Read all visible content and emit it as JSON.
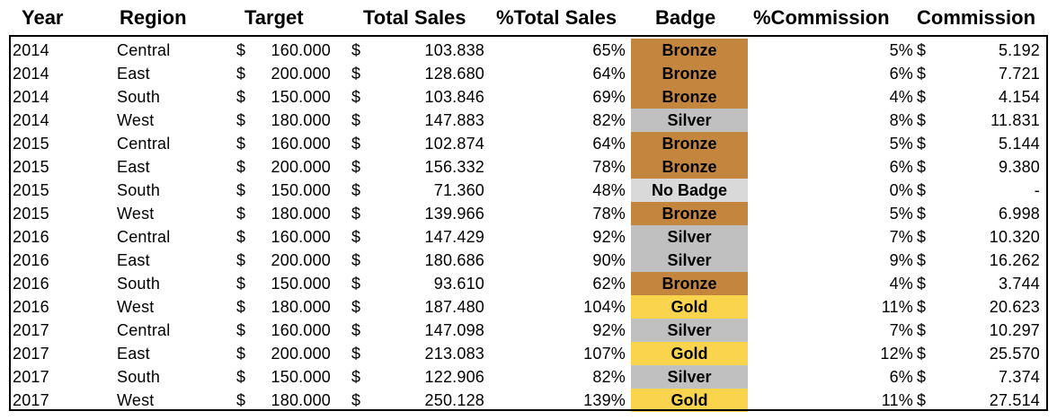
{
  "sheet": {
    "headers": {
      "year": "Year",
      "region": "Region",
      "target": "Target",
      "total_sales": "Total Sales",
      "pct_total_sales": "%Total Sales",
      "badge": "Badge",
      "pct_commission": "%Commission",
      "commission": "Commission"
    },
    "currency_symbol": "$",
    "badge_colors": {
      "Bronze": "#c4853f",
      "Silver": "#c0c0c0",
      "Gold": "#fbd44d",
      "No Badge": "#d9d9d9"
    },
    "rows": [
      {
        "year": "2014",
        "region": "Central",
        "target": "160.000",
        "total_sales": "103.838",
        "pct_total_sales": "65%",
        "badge": "Bronze",
        "pct_commission": "5%",
        "commission": "5.192"
      },
      {
        "year": "2014",
        "region": "East",
        "target": "200.000",
        "total_sales": "128.680",
        "pct_total_sales": "64%",
        "badge": "Bronze",
        "pct_commission": "6%",
        "commission": "7.721"
      },
      {
        "year": "2014",
        "region": "South",
        "target": "150.000",
        "total_sales": "103.846",
        "pct_total_sales": "69%",
        "badge": "Bronze",
        "pct_commission": "4%",
        "commission": "4.154"
      },
      {
        "year": "2014",
        "region": "West",
        "target": "180.000",
        "total_sales": "147.883",
        "pct_total_sales": "82%",
        "badge": "Silver",
        "pct_commission": "8%",
        "commission": "11.831"
      },
      {
        "year": "2015",
        "region": "Central",
        "target": "160.000",
        "total_sales": "102.874",
        "pct_total_sales": "64%",
        "badge": "Bronze",
        "pct_commission": "5%",
        "commission": "5.144"
      },
      {
        "year": "2015",
        "region": "East",
        "target": "200.000",
        "total_sales": "156.332",
        "pct_total_sales": "78%",
        "badge": "Bronze",
        "pct_commission": "6%",
        "commission": "9.380"
      },
      {
        "year": "2015",
        "region": "South",
        "target": "150.000",
        "total_sales": "71.360",
        "pct_total_sales": "48%",
        "badge": "No Badge",
        "pct_commission": "0%",
        "commission": "-"
      },
      {
        "year": "2015",
        "region": "West",
        "target": "180.000",
        "total_sales": "139.966",
        "pct_total_sales": "78%",
        "badge": "Bronze",
        "pct_commission": "5%",
        "commission": "6.998"
      },
      {
        "year": "2016",
        "region": "Central",
        "target": "160.000",
        "total_sales": "147.429",
        "pct_total_sales": "92%",
        "badge": "Silver",
        "pct_commission": "7%",
        "commission": "10.320"
      },
      {
        "year": "2016",
        "region": "East",
        "target": "200.000",
        "total_sales": "180.686",
        "pct_total_sales": "90%",
        "badge": "Silver",
        "pct_commission": "9%",
        "commission": "16.262"
      },
      {
        "year": "2016",
        "region": "South",
        "target": "150.000",
        "total_sales": "93.610",
        "pct_total_sales": "62%",
        "badge": "Bronze",
        "pct_commission": "4%",
        "commission": "3.744"
      },
      {
        "year": "2016",
        "region": "West",
        "target": "180.000",
        "total_sales": "187.480",
        "pct_total_sales": "104%",
        "badge": "Gold",
        "pct_commission": "11%",
        "commission": "20.623"
      },
      {
        "year": "2017",
        "region": "Central",
        "target": "160.000",
        "total_sales": "147.098",
        "pct_total_sales": "92%",
        "badge": "Silver",
        "pct_commission": "7%",
        "commission": "10.297"
      },
      {
        "year": "2017",
        "region": "East",
        "target": "200.000",
        "total_sales": "213.083",
        "pct_total_sales": "107%",
        "badge": "Gold",
        "pct_commission": "12%",
        "commission": "25.570"
      },
      {
        "year": "2017",
        "region": "South",
        "target": "150.000",
        "total_sales": "122.906",
        "pct_total_sales": "82%",
        "badge": "Silver",
        "pct_commission": "6%",
        "commission": "7.374"
      },
      {
        "year": "2017",
        "region": "West",
        "target": "180.000",
        "total_sales": "250.128",
        "pct_total_sales": "139%",
        "badge": "Gold",
        "pct_commission": "11%",
        "commission": "27.514"
      }
    ]
  }
}
